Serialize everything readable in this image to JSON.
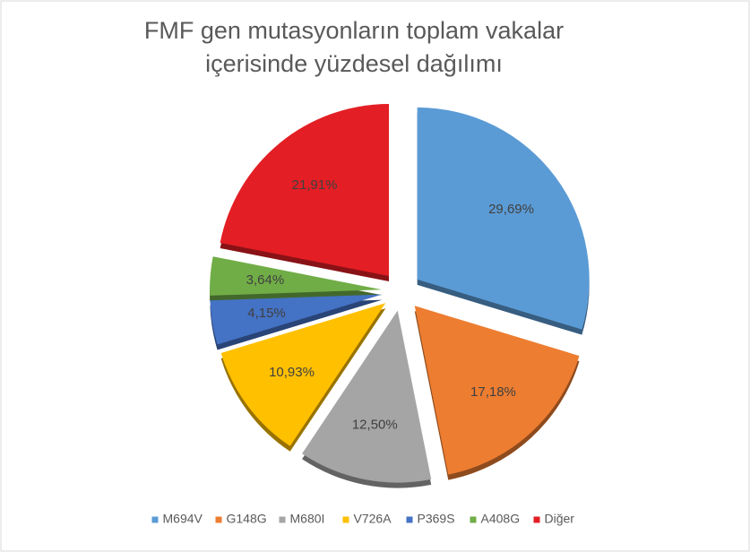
{
  "chart_data": {
    "type": "pie",
    "title": [
      "FMF gen mutasyonların toplam vakalar",
      "içerisinde yüzdesel dağılımı"
    ],
    "categories": [
      "M694V",
      "G148G",
      "M680I",
      "V726A",
      "P369S",
      "A408G",
      "Diğer"
    ],
    "values": [
      29.69,
      17.18,
      12.5,
      10.93,
      4.15,
      3.64,
      21.91
    ],
    "value_labels": [
      "29,69%",
      "17,18%",
      "12,50%",
      "10,93%",
      "4,15%",
      "3,64%",
      "21,91%"
    ],
    "colors": [
      "#5b9bd5",
      "#ed7d31",
      "#a5a5a5",
      "#ffc000",
      "#4472c4",
      "#70ad47",
      "#e31e24"
    ],
    "legend": "bottom"
  }
}
